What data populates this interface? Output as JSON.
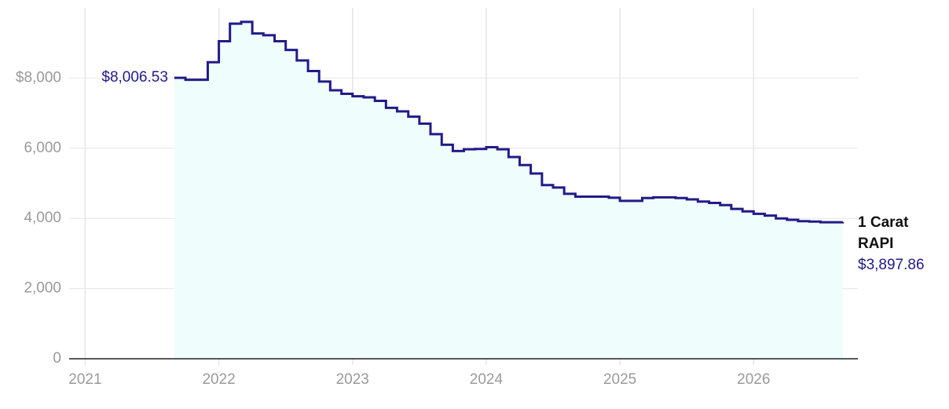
{
  "chart_data": {
    "type": "step-area",
    "x": [
      2021.667,
      2021.75,
      2021.833,
      2021.917,
      2022,
      2022.083,
      2022.167,
      2022.25,
      2022.333,
      2022.417,
      2022.5,
      2022.583,
      2022.667,
      2022.75,
      2022.833,
      2022.917,
      2023,
      2023.083,
      2023.167,
      2023.25,
      2023.333,
      2023.417,
      2023.5,
      2023.583,
      2023.667,
      2023.75,
      2023.833,
      2023.917,
      2024,
      2024.083,
      2024.167,
      2024.25,
      2024.333,
      2024.417,
      2024.5,
      2024.583,
      2024.667,
      2024.75,
      2024.833,
      2024.917,
      2025,
      2025.083,
      2025.167,
      2025.25,
      2025.333,
      2025.417,
      2025.5,
      2025.583,
      2025.667,
      2025.75,
      2025.833,
      2025.917,
      2026,
      2026.083,
      2026.167,
      2026.25,
      2026.333,
      2026.417,
      2026.5,
      2026.583,
      2026.667
    ],
    "series": [
      {
        "name": "1 Carat RAPI",
        "color": "#221b87",
        "fill": "#effdfd",
        "values": [
          8006.53,
          7950,
          7950,
          8450,
          9050,
          9550,
          9600,
          9270,
          9220,
          9050,
          8800,
          8500,
          8200,
          7900,
          7650,
          7550,
          7480,
          7450,
          7350,
          7150,
          7050,
          6900,
          6700,
          6400,
          6100,
          5920,
          5970,
          5980,
          6030,
          5970,
          5750,
          5520,
          5280,
          4950,
          4880,
          4700,
          4620,
          4620,
          4620,
          4590,
          4500,
          4500,
          4580,
          4600,
          4600,
          4580,
          4540,
          4480,
          4440,
          4380,
          4270,
          4200,
          4130,
          4080,
          4000,
          3960,
          3920,
          3910,
          3890,
          3890,
          3897.86
        ],
        "value_labels": [
          "$8,006.53",
          null,
          null,
          null,
          null,
          null,
          null,
          null,
          null,
          null,
          null,
          null,
          null,
          null,
          null,
          null,
          null,
          null,
          null,
          null,
          null,
          null,
          null,
          null,
          null,
          null,
          null,
          null,
          null,
          null,
          null,
          null,
          null,
          null,
          null,
          null,
          null,
          null,
          null,
          null,
          null,
          null,
          null,
          null,
          null,
          null,
          null,
          null,
          null,
          null,
          null,
          null,
          null,
          null,
          null,
          null,
          null,
          null,
          null,
          null,
          "$3,897.86"
        ]
      }
    ],
    "xlim": [
      2020.88,
      2026.78
    ],
    "xticks": [
      2021,
      2022,
      2023,
      2024,
      2025,
      2026
    ],
    "ylim": [
      0,
      10000
    ],
    "yticks": [
      0,
      {
        "value": 2000,
        "label": "2,000"
      },
      {
        "value": 4000,
        "label": "4,000"
      },
      {
        "value": 6000,
        "label": "6,000"
      },
      {
        "value": 8000,
        "label": "$8,000"
      }
    ],
    "grid": true
  }
}
